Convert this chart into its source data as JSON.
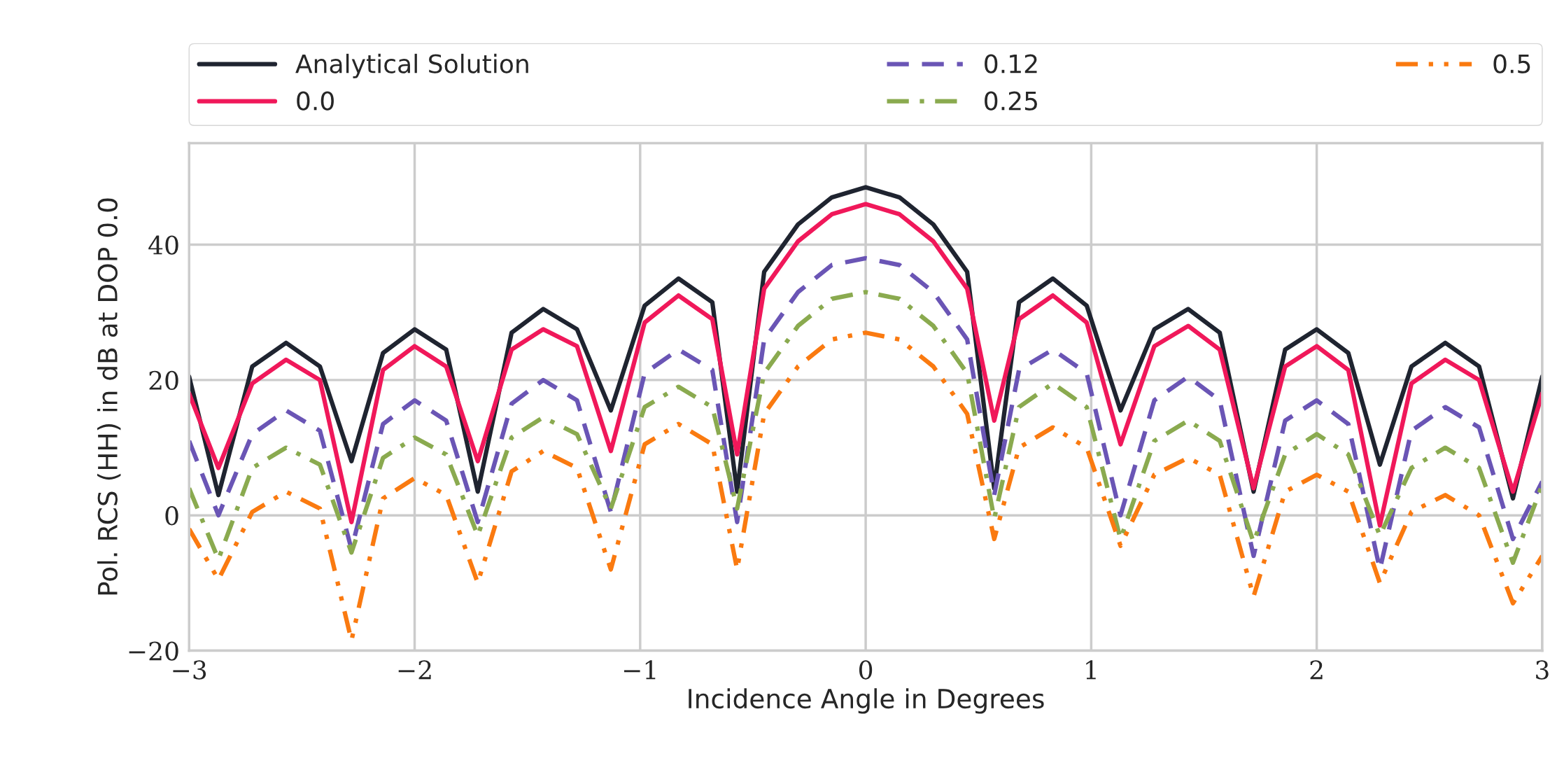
{
  "chart_data": {
    "type": "line",
    "xlabel": "Incidence Angle in Degrees",
    "ylabel": "Pol. RCS (HH) in dB at DOP 0.0",
    "x": [
      -3,
      -2.87,
      -2.72,
      -2.57,
      -2.42,
      -2.28,
      -2.14,
      -2.0,
      -1.86,
      -1.72,
      -1.57,
      -1.43,
      -1.28,
      -1.13,
      -0.98,
      -0.83,
      -0.68,
      -0.57,
      -0.45,
      -0.3,
      -0.15,
      0,
      0.15,
      0.3,
      0.45,
      0.57,
      0.68,
      0.83,
      0.98,
      1.13,
      1.28,
      1.43,
      1.57,
      1.72,
      1.86,
      2.0,
      2.14,
      2.28,
      2.42,
      2.57,
      2.72,
      2.87,
      3
    ],
    "series": [
      {
        "name": "Analytical Solution",
        "color": "#1f2430",
        "line_style": "solid",
        "values": [
          20.5,
          3,
          22,
          25.5,
          22,
          8,
          24,
          27.5,
          24.5,
          3.5,
          27,
          30.5,
          27.5,
          15.5,
          31,
          35,
          31.5,
          3.5,
          36,
          43,
          47,
          48.5,
          47,
          43,
          36,
          4,
          31.5,
          35,
          31,
          15.5,
          27.5,
          30.5,
          27,
          3.5,
          24.5,
          27.5,
          24,
          7.5,
          22,
          25.5,
          22,
          2.5,
          20.5
        ]
      },
      {
        "name": "0.0",
        "color": "#f0185a",
        "line_style": "solid",
        "values": [
          18,
          7,
          19.5,
          23,
          20,
          -1,
          21.5,
          25,
          22,
          8,
          24.5,
          27.5,
          25,
          9.5,
          28.5,
          32.5,
          29,
          9,
          33.5,
          40.5,
          44.5,
          46,
          44.5,
          40.5,
          33.5,
          14,
          29,
          32.5,
          28.5,
          10.5,
          25,
          28,
          24.5,
          4,
          22,
          25,
          21.5,
          -1.5,
          19.5,
          23,
          20,
          3.5,
          18
        ]
      },
      {
        "name": "0.12",
        "color": "#6a55b5",
        "line_style": "dashed",
        "values": [
          11,
          0,
          12,
          15.5,
          12.5,
          -5,
          13.5,
          17,
          14,
          -1,
          16.5,
          20,
          17,
          0.5,
          21,
          24.5,
          21.5,
          -1,
          26,
          33,
          37,
          38,
          37,
          33,
          26,
          3,
          21.5,
          24.5,
          21,
          0,
          17,
          20.5,
          17,
          -6,
          14,
          17,
          13.5,
          -8,
          12.5,
          16,
          13,
          -3.5,
          5
        ]
      },
      {
        "name": "0.25",
        "color": "#8aaa4f",
        "line_style": "dashdot",
        "values": [
          4,
          -6.5,
          7,
          10,
          7.5,
          -5.5,
          8.5,
          11.5,
          9,
          -3,
          11.5,
          14.5,
          12,
          1,
          16,
          19,
          16,
          1,
          21,
          28,
          32,
          33,
          32,
          28,
          21,
          -0.5,
          16,
          19.5,
          16,
          -3.5,
          11,
          14,
          11,
          -4,
          9,
          12,
          9,
          -3,
          7,
          10,
          7,
          -7,
          4.5
        ]
      },
      {
        "name": "0.5",
        "color": "#fa7a10",
        "line_style": "dashdotdot",
        "values": [
          -2,
          -9.5,
          0.5,
          3.5,
          1,
          -18.5,
          2.5,
          5.5,
          3,
          -10,
          6.5,
          9.5,
          7,
          -8,
          10.5,
          13.5,
          10.5,
          -8,
          15,
          22,
          26,
          27,
          26,
          22,
          15,
          -3.5,
          10,
          13,
          10,
          -4.5,
          6,
          8.5,
          6,
          -12,
          3.5,
          6,
          3.5,
          -10,
          0.5,
          3,
          0,
          -13,
          -6
        ]
      }
    ],
    "xlim": [
      -3,
      3
    ],
    "xticks": [
      {
        "value": -3,
        "label": "−3"
      },
      {
        "value": -2,
        "label": "−2"
      },
      {
        "value": -1,
        "label": "−1"
      },
      0,
      1,
      2,
      3
    ],
    "ylim": [
      -20,
      55
    ],
    "yticks": [
      {
        "value": -20,
        "label": "−20"
      },
      0,
      20,
      40
    ],
    "grid": true,
    "legend": "top"
  }
}
